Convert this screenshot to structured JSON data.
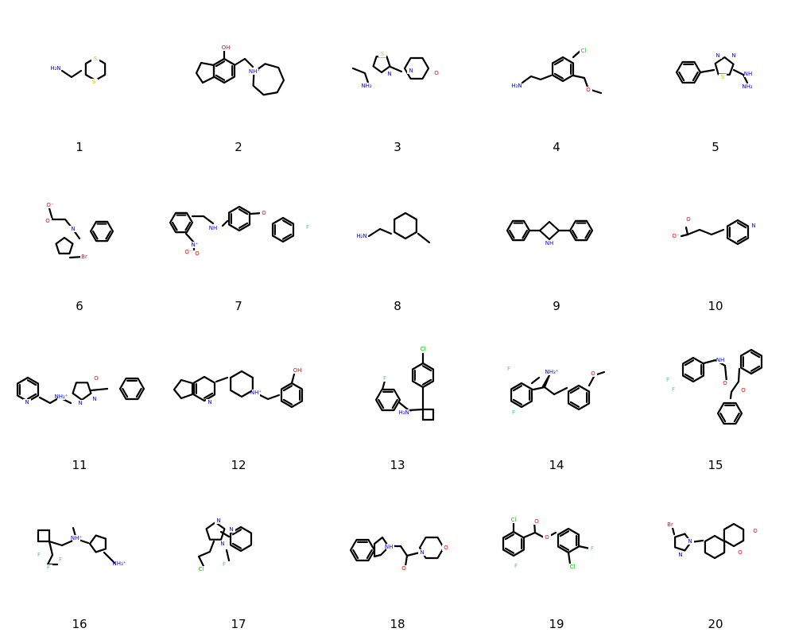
{
  "atom_colors": {
    "N": "#0000ff",
    "O": "#ff0000",
    "S": "#cccc00",
    "F": "#33cccc",
    "Cl": "#00cc00",
    "Br": "#a62929"
  },
  "molecules": [
    {
      "legend": "1",
      "atom_labels": [
        "H₂N",
        "S",
        "S"
      ]
    },
    {
      "legend": "2",
      "atom_labels": [
        "OH",
        "NH⁺"
      ]
    },
    {
      "legend": "3",
      "atom_labels": [
        "S",
        "N",
        "N",
        "O",
        "NH₂"
      ]
    },
    {
      "legend": "4",
      "atom_labels": [
        "Cl",
        "H₂N",
        "O"
      ]
    },
    {
      "legend": "5",
      "atom_labels": [
        "N",
        "N",
        "S",
        "NH",
        "NH₂"
      ]
    },
    {
      "legend": "6",
      "atom_labels": [
        "O⁻",
        "O",
        "N",
        "Br"
      ]
    },
    {
      "legend": "7",
      "atom_labels": [
        "NH",
        "N⁺",
        "O",
        "O⁻",
        "O",
        "F"
      ]
    },
    {
      "legend": "8",
      "atom_labels": [
        "H₂N"
      ]
    },
    {
      "legend": "9",
      "atom_labels": [
        "NH"
      ]
    },
    {
      "legend": "10",
      "atom_labels": [
        "O",
        "O⁻",
        "N"
      ]
    },
    {
      "legend": "11",
      "atom_labels": [
        "N",
        "NH₂⁺",
        "N",
        "O",
        "N"
      ]
    },
    {
      "legend": "12",
      "atom_labels": [
        "OH",
        "NH⁺",
        "N"
      ]
    },
    {
      "legend": "13",
      "atom_labels": [
        "Cl",
        "F",
        "H₂N⁺"
      ]
    },
    {
      "legend": "14",
      "atom_labels": [
        "F",
        "NH₃⁺",
        "O",
        "F"
      ]
    },
    {
      "legend": "15",
      "atom_labels": [
        "F",
        "F",
        "NH",
        "O",
        "O"
      ]
    },
    {
      "legend": "16",
      "atom_labels": [
        "NH⁺",
        "F",
        "F",
        "F",
        "NH₃⁺"
      ]
    },
    {
      "legend": "17",
      "atom_labels": [
        "N",
        "N",
        "N",
        "Cl",
        "F"
      ]
    },
    {
      "legend": "18",
      "atom_labels": [
        "NH⁺",
        "O",
        "N",
        "O"
      ]
    },
    {
      "legend": "19",
      "atom_labels": [
        "Cl",
        "O",
        "O",
        "F",
        "F",
        "Cl"
      ]
    },
    {
      "legend": "20",
      "atom_labels": [
        "Br",
        "N",
        "N",
        "O",
        "O"
      ]
    }
  ]
}
